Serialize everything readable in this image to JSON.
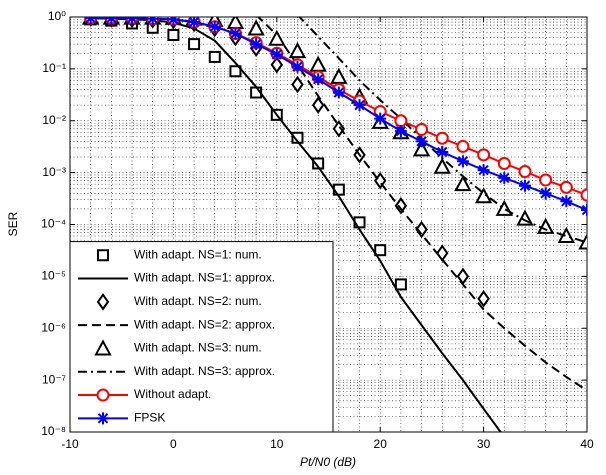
{
  "chart_data": {
    "type": "line",
    "y_label": "SER",
    "x_label": "Pt/N0 (dB)",
    "x": [
      -8,
      -6,
      -4,
      -2,
      0,
      2,
      4,
      6,
      8,
      10,
      12,
      14,
      16,
      18,
      20,
      22,
      24,
      26,
      28,
      30,
      32,
      34,
      36,
      38,
      40
    ],
    "xlim": [
      -10,
      40
    ],
    "xticks": [
      -10,
      0,
      10,
      20,
      30,
      40
    ],
    "ylim": [
      1e-08,
      1
    ],
    "log_y": true,
    "grid": true,
    "minor_grid": true,
    "legend": "lower left",
    "yticks": [
      {
        "value": 1e-08,
        "label": "10⁻⁸"
      },
      {
        "value": 1e-07,
        "label": "10⁻⁷"
      },
      {
        "value": 1e-06,
        "label": "10⁻⁶"
      },
      {
        "value": 1e-05,
        "label": "10⁻⁵"
      },
      {
        "value": 0.0001,
        "label": "10⁻⁴"
      },
      {
        "value": 0.001,
        "label": "10⁻³"
      },
      {
        "value": 0.01,
        "label": "10⁻²"
      },
      {
        "value": 0.1,
        "label": "10⁻¹"
      },
      {
        "value": 1,
        "label": "10⁰"
      }
    ],
    "series": [
      {
        "name": "With adapt. NS=1: num.",
        "color": "#000000",
        "marker": "square",
        "linestyle": "none",
        "values": [
          0.9,
          0.85,
          0.75,
          0.62,
          0.45,
          0.3,
          0.17,
          0.09,
          0.035,
          0.013,
          0.0047,
          0.0015,
          0.00047,
          0.00011,
          3.2e-05,
          7e-06,
          null,
          null,
          null,
          null,
          null,
          null,
          null,
          null,
          null
        ]
      },
      {
        "name": "With adapt. NS=1: approx.",
        "color": "#000000",
        "marker": "none",
        "linestyle": "solid",
        "values": [
          0.95,
          0.93,
          0.9,
          0.87,
          0.78,
          0.6,
          0.35,
          0.13,
          0.045,
          0.013,
          0.004,
          0.0013,
          0.00035,
          8e-05,
          2e-05,
          4e-06,
          1.15e-06,
          3.3e-07,
          1e-07,
          2.8e-08,
          8e-09,
          null,
          null,
          null,
          null
        ]
      },
      {
        "name": "With adapt. NS=2: num.",
        "color": "#000000",
        "marker": "diamond",
        "linestyle": "none",
        "values": [
          0.95,
          0.93,
          0.9,
          0.88,
          0.85,
          0.75,
          0.6,
          0.4,
          0.25,
          0.12,
          0.05,
          0.02,
          0.007,
          0.0022,
          0.0007,
          0.00023,
          8e-05,
          2.8e-05,
          1e-05,
          3.7e-06,
          null,
          null,
          null,
          null,
          null
        ]
      },
      {
        "name": "With adapt. NS=2: approx.",
        "color": "#000000",
        "marker": "none",
        "linestyle": "dashed",
        "values": [
          null,
          null,
          null,
          null,
          null,
          null,
          null,
          null,
          1.1,
          0.45,
          0.12,
          0.03,
          0.008,
          0.0022,
          0.00065,
          0.0002,
          6.5e-05,
          2.1e-05,
          7e-06,
          2.3e-06,
          1e-06,
          4.6e-07,
          2.2e-07,
          1.15e-07,
          6.3e-08
        ]
      },
      {
        "name": "With adapt. NS=3: num.",
        "color": "#000000",
        "marker": "triangle",
        "linestyle": "none",
        "values": [
          0.97,
          0.97,
          0.97,
          0.97,
          0.96,
          0.93,
          0.88,
          0.8,
          0.6,
          0.38,
          0.22,
          0.12,
          0.07,
          0.029,
          0.0095,
          0.006,
          0.0028,
          0.0013,
          0.0006,
          0.00035,
          0.0002,
          0.00013,
          9e-05,
          6e-05,
          4.5e-05
        ]
      },
      {
        "name": "With adapt. NS=3: approx.",
        "color": "#000000",
        "marker": "none",
        "linestyle": "dashdot",
        "values": [
          null,
          null,
          null,
          null,
          null,
          null,
          null,
          null,
          null,
          null,
          1.1,
          0.42,
          0.16,
          0.06,
          0.025,
          0.011,
          0.0045,
          0.0019,
          0.00085,
          0.0004,
          0.0002,
          0.00012,
          8e-05,
          6e-05,
          4.5e-05
        ]
      },
      {
        "name": "Without adapt.",
        "color": "#ff0000",
        "marker": "circle",
        "linestyle": "solid",
        "values": [
          0.95,
          0.95,
          0.95,
          0.93,
          0.9,
          0.8,
          0.65,
          0.48,
          0.32,
          0.2,
          0.12,
          0.07,
          0.04,
          0.024,
          0.015,
          0.01,
          0.0068,
          0.0046,
          0.0032,
          0.0022,
          0.0015,
          0.00105,
          0.00072,
          0.00052,
          0.00037
        ]
      },
      {
        "name": "FPSK",
        "color": "#0000ff",
        "marker": "star",
        "linestyle": "solid",
        "values": [
          0.95,
          0.95,
          0.95,
          0.93,
          0.9,
          0.8,
          0.65,
          0.48,
          0.3,
          0.19,
          0.11,
          0.063,
          0.035,
          0.02,
          0.011,
          0.0063,
          0.004,
          0.0025,
          0.00166,
          0.00112,
          0.00079,
          0.00056,
          0.0004,
          0.00028,
          0.00019
        ]
      }
    ]
  }
}
